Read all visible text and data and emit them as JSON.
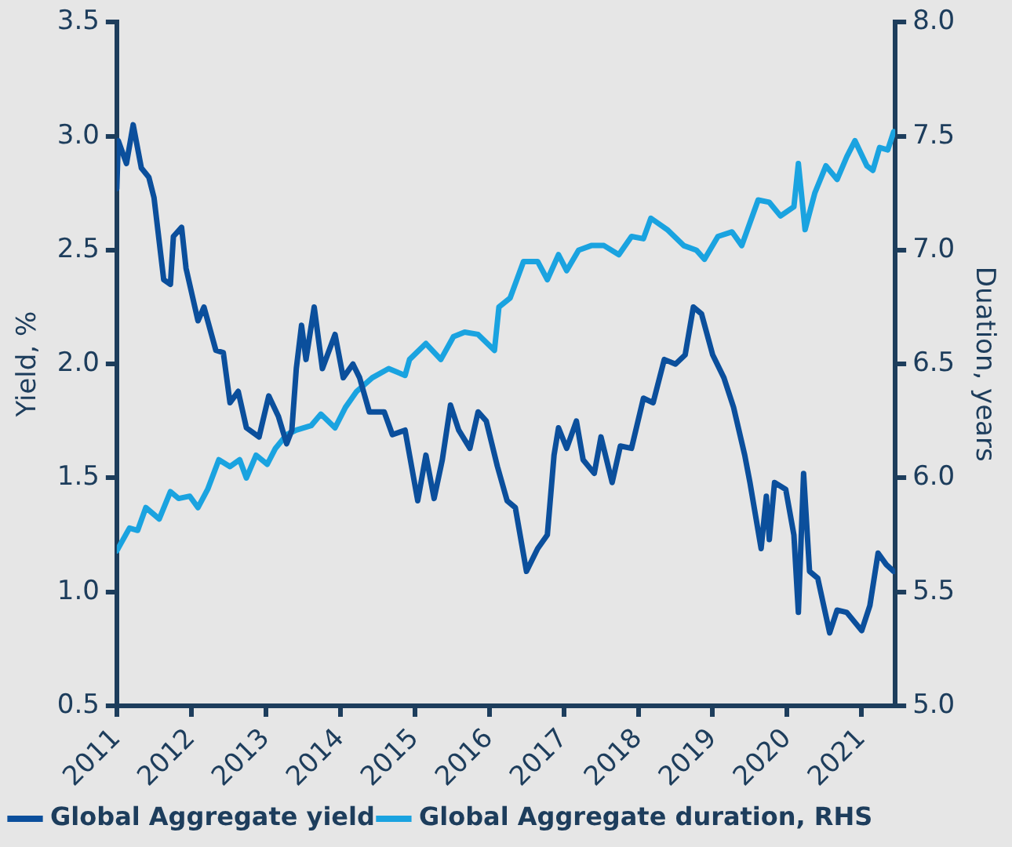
{
  "chart_data": {
    "type": "line",
    "ylabel": "Yield, %",
    "y2label": "Duation, years",
    "xlim": [
      2011,
      2021.45
    ],
    "xticks": [
      2011,
      2012,
      2013,
      2014,
      2015,
      2016,
      2017,
      2018,
      2019,
      2020,
      2021
    ],
    "ylim": [
      0.5,
      3.5
    ],
    "yticks": [
      0.5,
      {
        "value": 1,
        "label": "1.0"
      },
      1.5,
      {
        "value": 2,
        "label": "2.0"
      },
      2.5,
      {
        "value": 3,
        "label": "3.0"
      },
      3.5
    ],
    "y2lim": [
      5,
      8
    ],
    "y2ticks": [
      {
        "value": 5,
        "label": "5.0"
      },
      5.5,
      {
        "value": 6,
        "label": "6.0"
      },
      6.5,
      {
        "value": 7,
        "label": "7.0"
      },
      7.5,
      {
        "value": 8,
        "label": "8.0"
      }
    ],
    "grid": false,
    "legend": "bottom left",
    "marker": "none",
    "line_style": "solid",
    "series": [
      {
        "name": "Global Aggregate yield",
        "color": "#0b4f9c",
        "x": [
          2011.0,
          2011.02,
          2011.13,
          2011.22,
          2011.33,
          2011.43,
          2011.5,
          2011.63,
          2011.72,
          2011.76,
          2011.87,
          2011.93,
          2012.09,
          2012.17,
          2012.33,
          2012.43,
          2012.52,
          2012.63,
          2012.74,
          2012.91,
          2013.04,
          2013.17,
          2013.28,
          2013.35,
          2013.41,
          2013.48,
          2013.54,
          2013.65,
          2013.76,
          2013.93,
          2014.04,
          2014.17,
          2014.26,
          2014.39,
          2014.59,
          2014.7,
          2014.87,
          2015.04,
          2015.15,
          2015.26,
          2015.37,
          2015.48,
          2015.59,
          2015.74,
          2015.85,
          2015.96,
          2016.11,
          2016.24,
          2016.35,
          2016.5,
          2016.65,
          2016.78,
          2016.87,
          2016.93,
          2017.04,
          2017.17,
          2017.26,
          2017.41,
          2017.5,
          2017.65,
          2017.76,
          2017.91,
          2018.07,
          2018.2,
          2018.35,
          2018.5,
          2018.63,
          2018.74,
          2018.85,
          2019.0,
          2019.15,
          2019.28,
          2019.43,
          2019.5,
          2019.65,
          2019.72,
          2019.76,
          2019.83,
          2019.98,
          2020.09,
          2020.15,
          2020.22,
          2020.3,
          2020.41,
          2020.57,
          2020.67,
          2020.8,
          2021.0,
          2021.11,
          2021.22,
          2021.33,
          2021.43
        ],
        "values": [
          2.77,
          2.98,
          2.88,
          3.05,
          2.86,
          2.82,
          2.73,
          2.37,
          2.35,
          2.56,
          2.6,
          2.42,
          2.19,
          2.25,
          2.06,
          2.05,
          1.83,
          1.88,
          1.72,
          1.68,
          1.86,
          1.77,
          1.65,
          1.71,
          1.98,
          2.17,
          2.02,
          2.25,
          1.98,
          2.13,
          1.94,
          2.0,
          1.94,
          1.79,
          1.79,
          1.69,
          1.71,
          1.4,
          1.6,
          1.41,
          1.58,
          1.82,
          1.71,
          1.63,
          1.79,
          1.75,
          1.55,
          1.4,
          1.37,
          1.09,
          1.19,
          1.25,
          1.6,
          1.72,
          1.63,
          1.75,
          1.58,
          1.52,
          1.68,
          1.48,
          1.64,
          1.63,
          1.85,
          1.83,
          2.02,
          2.0,
          2.04,
          2.25,
          2.22,
          2.04,
          1.94,
          1.81,
          1.6,
          1.48,
          1.19,
          1.42,
          1.23,
          1.48,
          1.45,
          1.25,
          0.91,
          1.52,
          1.09,
          1.06,
          0.82,
          0.92,
          0.91,
          0.83,
          0.94,
          1.17,
          1.12,
          1.09
        ]
      },
      {
        "name": "Global Aggregate duration, RHS",
        "color": "#1aa3e0",
        "axis": "y2",
        "x": [
          2011.0,
          2011.17,
          2011.28,
          2011.39,
          2011.57,
          2011.72,
          2011.83,
          2011.98,
          2012.09,
          2012.22,
          2012.37,
          2012.52,
          2012.65,
          2012.74,
          2012.87,
          2013.02,
          2013.13,
          2013.28,
          2013.41,
          2013.61,
          2013.74,
          2013.93,
          2014.07,
          2014.22,
          2014.43,
          2014.65,
          2014.87,
          2014.93,
          2015.15,
          2015.35,
          2015.52,
          2015.67,
          2015.85,
          2016.07,
          2016.13,
          2016.28,
          2016.46,
          2016.65,
          2016.78,
          2016.93,
          2017.04,
          2017.2,
          2017.37,
          2017.54,
          2017.74,
          2017.91,
          2018.07,
          2018.17,
          2018.39,
          2018.61,
          2018.78,
          2018.89,
          2019.07,
          2019.26,
          2019.39,
          2019.5,
          2019.61,
          2019.76,
          2019.91,
          2020.09,
          2020.15,
          2020.24,
          2020.37,
          2020.52,
          2020.67,
          2020.8,
          2020.91,
          2021.07,
          2021.15,
          2021.24,
          2021.35,
          2021.43
        ],
        "values": [
          5.68,
          5.78,
          5.77,
          5.87,
          5.82,
          5.94,
          5.91,
          5.92,
          5.87,
          5.95,
          6.08,
          6.05,
          6.08,
          6.0,
          6.1,
          6.06,
          6.13,
          6.19,
          6.21,
          6.23,
          6.28,
          6.22,
          6.31,
          6.38,
          6.44,
          6.48,
          6.45,
          6.52,
          6.59,
          6.52,
          6.62,
          6.64,
          6.63,
          6.56,
          6.75,
          6.79,
          6.95,
          6.95,
          6.87,
          6.98,
          6.91,
          7.0,
          7.02,
          7.02,
          6.98,
          7.06,
          7.05,
          7.14,
          7.09,
          7.02,
          7.0,
          6.96,
          7.06,
          7.08,
          7.02,
          7.12,
          7.22,
          7.21,
          7.15,
          7.19,
          7.38,
          7.09,
          7.25,
          7.37,
          7.31,
          7.41,
          7.48,
          7.37,
          7.35,
          7.45,
          7.44,
          7.52
        ]
      }
    ]
  }
}
